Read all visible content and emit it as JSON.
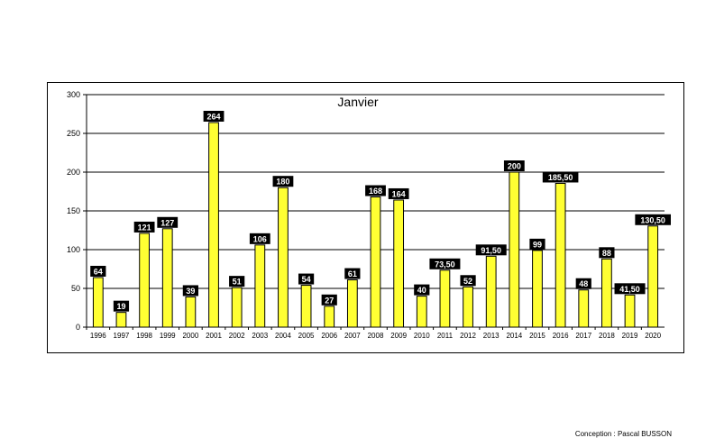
{
  "chart_data": {
    "type": "bar",
    "title": "Janvier",
    "categories": [
      "1996",
      "1997",
      "1998",
      "1999",
      "2000",
      "2001",
      "2002",
      "2003",
      "2004",
      "2005",
      "2006",
      "2007",
      "2008",
      "2009",
      "2010",
      "2011",
      "2012",
      "2013",
      "2014",
      "2015",
      "2016",
      "2017",
      "2018",
      "2019",
      "2020"
    ],
    "values": [
      64,
      19,
      121,
      127,
      39,
      264,
      51,
      106,
      180,
      54,
      27,
      61,
      168,
      164,
      40,
      73.5,
      52,
      91.5,
      200,
      99,
      185.5,
      48,
      88,
      41.5,
      130.5
    ],
    "data_labels": [
      "64",
      "19",
      "121",
      "127",
      "39",
      "264",
      "51",
      "106",
      "180",
      "54",
      "27",
      "61",
      "168",
      "164",
      "40",
      "73,50",
      "52",
      "91,50",
      "200",
      "99",
      "185,50",
      "48",
      "88",
      "41,50",
      "130,50"
    ],
    "yticks": [
      "0",
      "50",
      "100",
      "150",
      "200",
      "250",
      "300"
    ],
    "ylim": [
      0,
      300
    ],
    "grid": true,
    "bar_color": "#ffff33",
    "bar_edge_color": "#000000",
    "label_background": "#000000"
  },
  "credit": "Conception : Pascal BUSSON"
}
